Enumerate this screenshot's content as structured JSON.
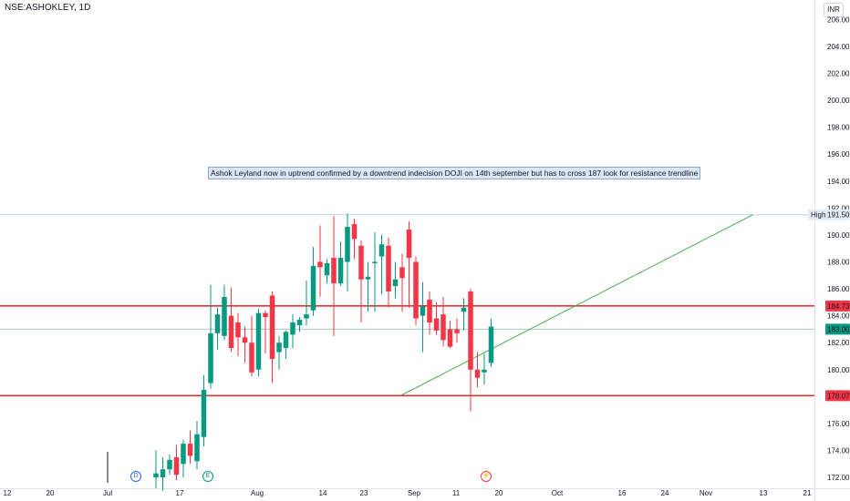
{
  "header": {
    "symbol": "NSE:ASHOKLEY, 1D",
    "currency": "INR"
  },
  "annotation": {
    "text": "Ashok Leyland now in uptrend confirmed by a downtrend indecision DOJI on 14th september but has to cross 187 look for resistance trendline"
  },
  "events": [
    {
      "label": "D",
      "color": "#2962ff"
    },
    {
      "label": "E",
      "color": "#089981"
    },
    {
      "label": "⚡",
      "color": "#f23645"
    }
  ],
  "colors": {
    "up": "#089981",
    "down": "#f23645",
    "trendline": "#4caf50",
    "level": "#e03434"
  },
  "chart_data": {
    "type": "candlestick",
    "ylim": [
      171.6,
      206.9
    ],
    "yticks": [
      172,
      174,
      176,
      178,
      180,
      182,
      184,
      186,
      188,
      190,
      192,
      194,
      196,
      198,
      200,
      202,
      204,
      206
    ],
    "ytick_labels": [
      "172.00",
      "174.00",
      "176.00",
      "178.00",
      "180.00",
      "182.00",
      "184.00",
      "186.00",
      "188.00",
      "190.00",
      "192.00",
      "194.00",
      "196.00",
      "198.00",
      "200.00",
      "202.00",
      "204.00",
      "206.00"
    ],
    "xticks": [
      "12",
      "20",
      "Jul",
      "17",
      "Aug",
      "14",
      "23",
      "Sep",
      "11",
      "20",
      "Oct",
      "16",
      "24",
      "Nov",
      "13",
      "21"
    ],
    "price_labels": [
      {
        "value": 191.5,
        "text": "191.50",
        "prefix": "High",
        "color": "#e3ebf4",
        "text_color": "#131722"
      },
      {
        "value": 184.73,
        "text": "184.73",
        "color": "#f23645",
        "text_color": "#ffffff"
      },
      {
        "value": 183.0,
        "text": "183.00",
        "color": "#089981",
        "text_color": "#ffffff"
      },
      {
        "value": 178.07,
        "text": "178.07",
        "color": "#f23645",
        "text_color": "#ffffff"
      }
    ],
    "horizontal_levels": [
      184.73,
      178.07
    ],
    "high_line": 191.5,
    "last_price_line": 183.0,
    "trendline": {
      "from": {
        "bar": 36,
        "price": 178.1
      },
      "to": {
        "bar": 87,
        "price": 191.5
      }
    },
    "candles": [
      {
        "o": 172.0,
        "h": 174.0,
        "l": 171.2,
        "c": 172.3
      },
      {
        "o": 172.0,
        "h": 173.5,
        "l": 171.0,
        "c": 172.6
      },
      {
        "o": 172.6,
        "h": 173.7,
        "l": 172.2,
        "c": 173.3
      },
      {
        "o": 173.5,
        "h": 174.4,
        "l": 171.8,
        "c": 172.2
      },
      {
        "o": 173.0,
        "h": 174.8,
        "l": 172.0,
        "c": 174.5
      },
      {
        "o": 174.5,
        "h": 175.5,
        "l": 173.0,
        "c": 173.6
      },
      {
        "o": 173.2,
        "h": 176.2,
        "l": 172.6,
        "c": 175.2
      },
      {
        "o": 175.0,
        "h": 179.6,
        "l": 174.3,
        "c": 178.5
      },
      {
        "o": 179.0,
        "h": 186.3,
        "l": 178.6,
        "c": 182.7
      },
      {
        "o": 182.7,
        "h": 184.6,
        "l": 181.5,
        "c": 184.1
      },
      {
        "o": 182.5,
        "h": 186.3,
        "l": 182.2,
        "c": 185.4
      },
      {
        "o": 184.0,
        "h": 186.1,
        "l": 181.3,
        "c": 181.6
      },
      {
        "o": 183.5,
        "h": 184.2,
        "l": 181.0,
        "c": 182.4
      },
      {
        "o": 182.4,
        "h": 183.2,
        "l": 180.5,
        "c": 182.0
      },
      {
        "o": 182.0,
        "h": 184.0,
        "l": 179.5,
        "c": 179.8
      },
      {
        "o": 180.0,
        "h": 184.5,
        "l": 179.5,
        "c": 184.2
      },
      {
        "o": 184.2,
        "h": 184.4,
        "l": 181.2,
        "c": 183.9
      },
      {
        "o": 185.5,
        "h": 185.8,
        "l": 179.0,
        "c": 180.8
      },
      {
        "o": 181.3,
        "h": 182.5,
        "l": 180.0,
        "c": 182.0
      },
      {
        "o": 181.6,
        "h": 182.9,
        "l": 180.8,
        "c": 182.8
      },
      {
        "o": 182.6,
        "h": 184.1,
        "l": 181.6,
        "c": 183.5
      },
      {
        "o": 183.3,
        "h": 183.9,
        "l": 182.8,
        "c": 183.7
      },
      {
        "o": 183.8,
        "h": 186.6,
        "l": 183.3,
        "c": 184.1
      },
      {
        "o": 184.4,
        "h": 189.1,
        "l": 184.0,
        "c": 187.7
      },
      {
        "o": 188.0,
        "h": 190.7,
        "l": 185.4,
        "c": 187.6
      },
      {
        "o": 187.0,
        "h": 188.2,
        "l": 186.4,
        "c": 187.9
      },
      {
        "o": 188.3,
        "h": 191.4,
        "l": 182.5,
        "c": 186.4
      },
      {
        "o": 186.4,
        "h": 189.5,
        "l": 186.2,
        "c": 188.3
      },
      {
        "o": 188.0,
        "h": 191.6,
        "l": 185.8,
        "c": 190.6
      },
      {
        "o": 190.8,
        "h": 191.2,
        "l": 188.2,
        "c": 189.7
      },
      {
        "o": 189.2,
        "h": 189.6,
        "l": 183.5,
        "c": 186.7
      },
      {
        "o": 186.7,
        "h": 188.0,
        "l": 184.3,
        "c": 186.9
      },
      {
        "o": 187.9,
        "h": 190.2,
        "l": 184.3,
        "c": 188.0
      },
      {
        "o": 188.4,
        "h": 190.0,
        "l": 185.6,
        "c": 189.3
      },
      {
        "o": 189.2,
        "h": 189.8,
        "l": 184.6,
        "c": 185.8
      },
      {
        "o": 186.2,
        "h": 188.0,
        "l": 185.3,
        "c": 186.7
      },
      {
        "o": 187.6,
        "h": 188.6,
        "l": 184.3,
        "c": 186.8
      },
      {
        "o": 190.4,
        "h": 191.0,
        "l": 184.6,
        "c": 188.3
      },
      {
        "o": 188.0,
        "h": 188.4,
        "l": 183.3,
        "c": 183.8
      },
      {
        "o": 184.0,
        "h": 186.5,
        "l": 181.3,
        "c": 184.7
      },
      {
        "o": 185.2,
        "h": 185.8,
        "l": 182.6,
        "c": 183.5
      },
      {
        "o": 183.8,
        "h": 185.0,
        "l": 182.6,
        "c": 182.9
      },
      {
        "o": 184.1,
        "h": 185.4,
        "l": 181.7,
        "c": 182.2
      },
      {
        "o": 183.0,
        "h": 183.6,
        "l": 181.6,
        "c": 181.7
      },
      {
        "o": 183.0,
        "h": 183.8,
        "l": 182.0,
        "c": 182.7
      },
      {
        "o": 184.3,
        "h": 185.3,
        "l": 182.9,
        "c": 184.6
      },
      {
        "o": 185.8,
        "h": 186.0,
        "l": 176.9,
        "c": 180.0
      },
      {
        "o": 180.0,
        "h": 181.3,
        "l": 178.7,
        "c": 179.4
      },
      {
        "o": 179.8,
        "h": 181.2,
        "l": 178.9,
        "c": 180.0
      },
      {
        "o": 180.5,
        "h": 183.8,
        "l": 180.2,
        "c": 183.2
      }
    ]
  }
}
